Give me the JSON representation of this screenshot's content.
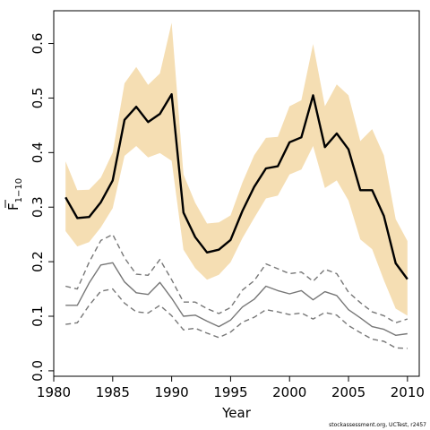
{
  "chart_data": {
    "type": "line",
    "title": "",
    "xlabel": "Year",
    "ylabel": "F",
    "ylabel_subscript": "1−10",
    "xlim": [
      1980,
      2011
    ],
    "ylim": [
      -0.01,
      0.66
    ],
    "x_ticks": [
      1980,
      1985,
      1990,
      1995,
      2000,
      2005,
      2010
    ],
    "x_tick_labels": [
      "1980",
      "1985",
      "1990",
      "1995",
      "2000",
      "2005",
      "2010"
    ],
    "y_ticks": [
      0.0,
      0.1,
      0.2,
      0.3,
      0.4,
      0.5,
      0.6
    ],
    "y_tick_labels": [
      "0.0",
      "0.1",
      "0.2",
      "0.3",
      "0.4",
      "0.5",
      "0.6"
    ],
    "grid": false,
    "legend": "none",
    "years": [
      1981,
      1982,
      1983,
      1984,
      1985,
      1986,
      1987,
      1988,
      1989,
      1990,
      1991,
      1992,
      1993,
      1994,
      1995,
      1996,
      1997,
      1998,
      1999,
      2000,
      2001,
      2002,
      2003,
      2004,
      2005,
      2006,
      2007,
      2008,
      2009,
      2010
    ],
    "band": {
      "color": "#f5deb3",
      "upper": [
        0.384,
        0.331,
        0.332,
        0.354,
        0.4,
        0.527,
        0.557,
        0.524,
        0.545,
        0.638,
        0.36,
        0.308,
        0.27,
        0.272,
        0.285,
        0.345,
        0.395,
        0.427,
        0.429,
        0.485,
        0.496,
        0.599,
        0.485,
        0.525,
        0.505,
        0.421,
        0.443,
        0.395,
        0.278,
        0.238
      ],
      "lower": [
        0.256,
        0.228,
        0.236,
        0.263,
        0.298,
        0.394,
        0.412,
        0.391,
        0.399,
        0.385,
        0.222,
        0.188,
        0.167,
        0.176,
        0.199,
        0.243,
        0.28,
        0.316,
        0.321,
        0.36,
        0.369,
        0.412,
        0.335,
        0.349,
        0.312,
        0.241,
        0.223,
        0.166,
        0.114,
        0.101
      ]
    },
    "series": [
      {
        "style": "thick-black",
        "color": "#000000",
        "values": [
          0.318,
          0.28,
          0.282,
          0.309,
          0.349,
          0.46,
          0.484,
          0.456,
          0.471,
          0.507,
          0.29,
          0.245,
          0.217,
          0.222,
          0.24,
          0.293,
          0.337,
          0.371,
          0.375,
          0.419,
          0.428,
          0.505,
          0.41,
          0.435,
          0.406,
          0.331,
          0.331,
          0.284,
          0.197,
          0.168
        ]
      },
      {
        "style": "solid-grey",
        "color": "#777777",
        "values": [
          0.12,
          0.12,
          0.161,
          0.194,
          0.198,
          0.163,
          0.143,
          0.14,
          0.162,
          0.133,
          0.1,
          0.102,
          0.091,
          0.081,
          0.093,
          0.117,
          0.131,
          0.155,
          0.147,
          0.141,
          0.147,
          0.13,
          0.145,
          0.138,
          0.112,
          0.097,
          0.081,
          0.076,
          0.065,
          0.068
        ]
      },
      {
        "style": "dashed-upper",
        "color": "#777777",
        "values": [
          0.155,
          0.15,
          0.199,
          0.239,
          0.25,
          0.207,
          0.177,
          0.175,
          0.204,
          0.167,
          0.126,
          0.126,
          0.114,
          0.105,
          0.116,
          0.148,
          0.165,
          0.196,
          0.187,
          0.178,
          0.181,
          0.164,
          0.186,
          0.178,
          0.144,
          0.125,
          0.108,
          0.101,
          0.088,
          0.095
        ]
      },
      {
        "style": "dashed-lower",
        "color": "#777777",
        "values": [
          0.085,
          0.088,
          0.12,
          0.146,
          0.15,
          0.124,
          0.108,
          0.106,
          0.12,
          0.101,
          0.075,
          0.078,
          0.069,
          0.061,
          0.071,
          0.089,
          0.098,
          0.112,
          0.108,
          0.103,
          0.106,
          0.095,
          0.107,
          0.102,
          0.083,
          0.07,
          0.058,
          0.054,
          0.042,
          0.041
        ]
      }
    ]
  },
  "footer": {
    "text": "stockassessment.org, UCTest, r2457"
  },
  "colors": {
    "band": "#f5deb3",
    "main": "#000000",
    "secondary": "#777777"
  }
}
